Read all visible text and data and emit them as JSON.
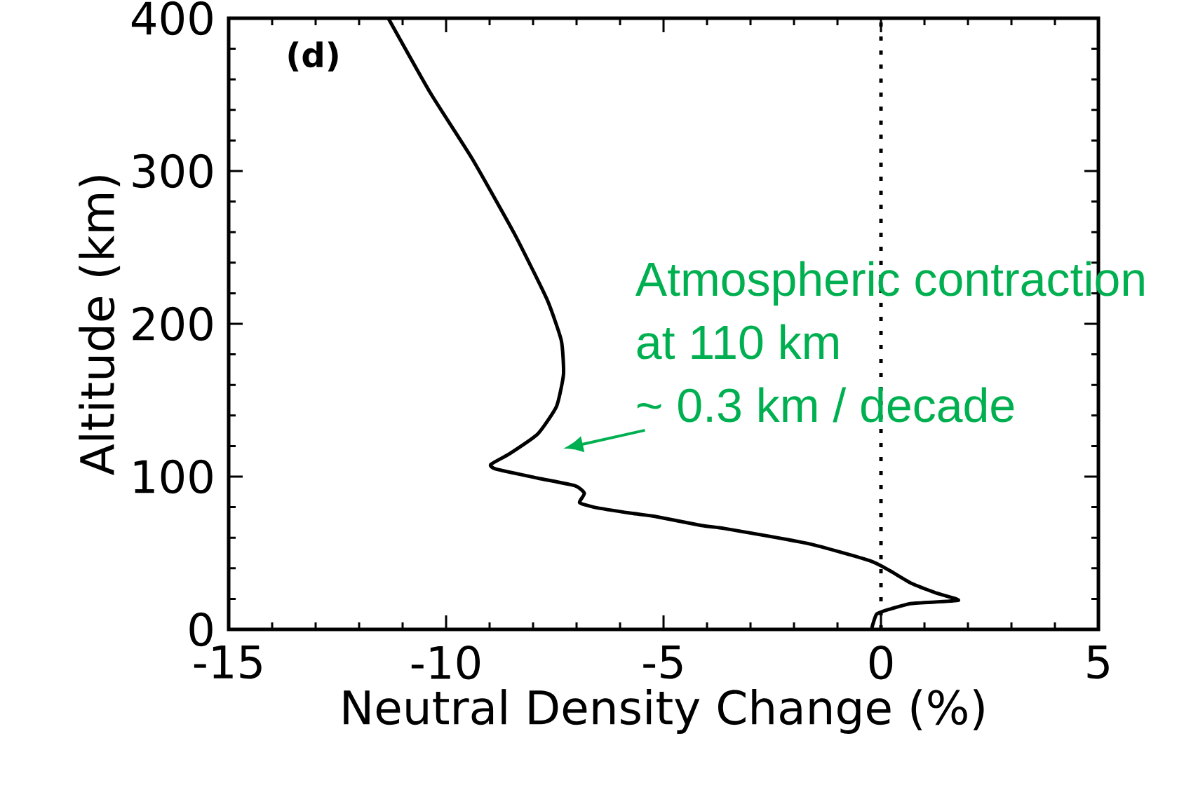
{
  "chart_data": {
    "type": "line",
    "xlabel": "Neutral Density Change (%)",
    "ylabel": "Altitude (km)",
    "xlim": [
      -15,
      5
    ],
    "ylim": [
      0,
      400
    ],
    "xticks": [
      -15,
      -10,
      -5,
      0,
      5
    ],
    "yticks": [
      0,
      100,
      200,
      300,
      400
    ],
    "marker": "none",
    "line_style": "solid",
    "series": [
      {
        "color": "#000000",
        "x": [
          -11.33,
          -10.36,
          -9.4,
          -8.43,
          -7.68,
          -7.35,
          -7.3,
          -7.46,
          -7.89,
          -8.54,
          -8.97,
          -8.86,
          -7.89,
          -7.03,
          -6.82,
          -6.93,
          -6.6,
          -5.74,
          -5.2,
          -4.13,
          -3.59,
          -1.65,
          -0.26,
          0.17,
          0.71,
          1.25,
          1.78,
          0.71,
          0.17,
          -0.1,
          -0.2,
          -0.2
        ],
        "values": [
          400,
          351,
          308,
          259,
          216,
          189,
          167,
          146,
          128,
          115,
          108,
          105,
          99,
          94,
          89,
          83,
          80,
          76,
          74,
          68,
          66,
          56,
          45,
          39,
          30,
          24,
          19,
          17,
          13,
          10,
          2,
          0
        ]
      }
    ],
    "ref_lines": [
      {
        "axis": "x",
        "value": 0,
        "line_style": "dotted",
        "color": "#000000"
      }
    ],
    "annotations": [
      "(d)",
      "Atmospheric contraction",
      "at 110 km",
      "~ 0.3 km / decade"
    ]
  }
}
